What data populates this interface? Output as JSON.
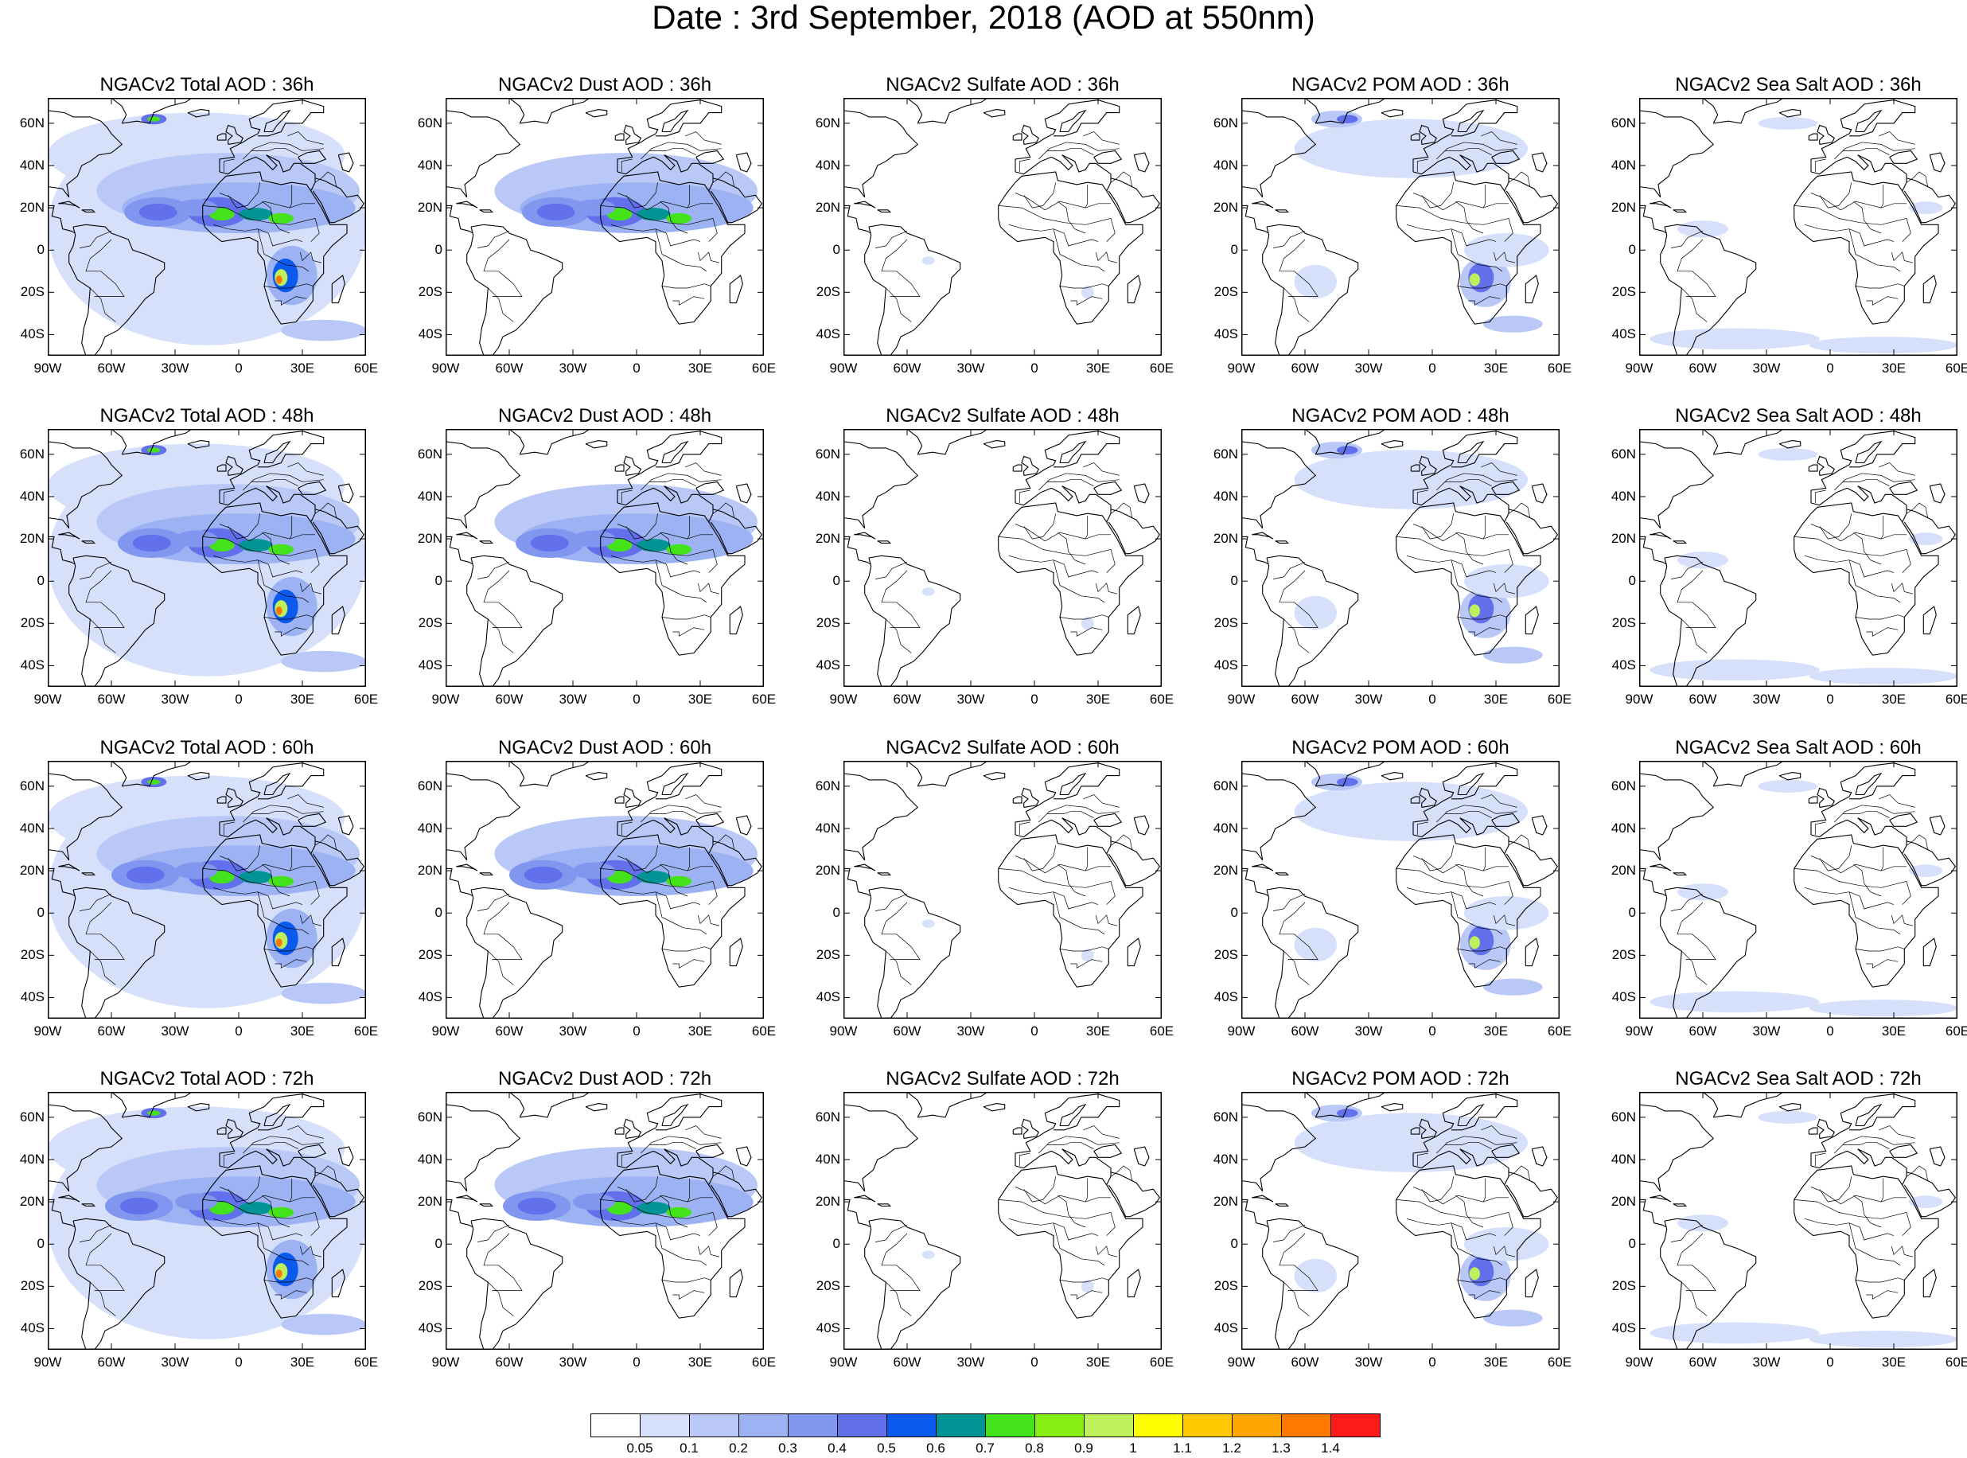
{
  "title": "Date : 3rd September, 2018 (AOD at 550nm)",
  "lat_ticks": [
    "60N",
    "40N",
    "20N",
    "0",
    "20S",
    "40S"
  ],
  "lat_values": [
    60,
    40,
    20,
    0,
    -20,
    -40
  ],
  "lon_ticks": [
    "90W",
    "60W",
    "30W",
    "0",
    "30E",
    "60E"
  ],
  "lon_values": [
    -90,
    -60,
    -30,
    0,
    30,
    60
  ],
  "map_extent": {
    "lon": [
      -90,
      60
    ],
    "lat": [
      -50,
      72
    ]
  },
  "panels": [
    {
      "title": "NGACv2 Total AOD : 36h",
      "species": "total",
      "hour": 36
    },
    {
      "title": "NGACv2 Dust AOD : 36h",
      "species": "dust",
      "hour": 36
    },
    {
      "title": "NGACv2 Sulfate AOD : 36h",
      "species": "sulfate",
      "hour": 36
    },
    {
      "title": "NGACv2 POM AOD : 36h",
      "species": "pom",
      "hour": 36
    },
    {
      "title": "NGACv2 Sea Salt AOD : 36h",
      "species": "seasalt",
      "hour": 36
    },
    {
      "title": "NGACv2 Total AOD : 48h",
      "species": "total",
      "hour": 48
    },
    {
      "title": "NGACv2 Dust AOD : 48h",
      "species": "dust",
      "hour": 48
    },
    {
      "title": "NGACv2 Sulfate AOD : 48h",
      "species": "sulfate",
      "hour": 48
    },
    {
      "title": "NGACv2 POM AOD : 48h",
      "species": "pom",
      "hour": 48
    },
    {
      "title": "NGACv2 Sea Salt AOD : 48h",
      "species": "seasalt",
      "hour": 48
    },
    {
      "title": "NGACv2 Total AOD : 60h",
      "species": "total",
      "hour": 60
    },
    {
      "title": "NGACv2 Dust AOD : 60h",
      "species": "dust",
      "hour": 60
    },
    {
      "title": "NGACv2 Sulfate AOD : 60h",
      "species": "sulfate",
      "hour": 60
    },
    {
      "title": "NGACv2 POM AOD : 60h",
      "species": "pom",
      "hour": 60
    },
    {
      "title": "NGACv2 Sea Salt AOD : 60h",
      "species": "seasalt",
      "hour": 60
    },
    {
      "title": "NGACv2 Total AOD : 72h",
      "species": "total",
      "hour": 72
    },
    {
      "title": "NGACv2 Dust AOD : 72h",
      "species": "dust",
      "hour": 72
    },
    {
      "title": "NGACv2 Sulfate AOD : 72h",
      "species": "sulfate",
      "hour": 72
    },
    {
      "title": "NGACv2 POM AOD : 72h",
      "species": "pom",
      "hour": 72
    },
    {
      "title": "NGACv2 Sea Salt  AOD : 72h",
      "species": "seasalt",
      "hour": 72
    }
  ],
  "colorbar": {
    "labels": [
      "0.05",
      "0.1",
      "0.2",
      "0.3",
      "0.4",
      "0.5",
      "0.6",
      "0.7",
      "0.8",
      "0.9",
      "1",
      "1.1",
      "1.2",
      "1.3",
      "1.4"
    ],
    "colors": [
      "#ffffff",
      "#d6e0fb",
      "#b9c8f7",
      "#9db2f3",
      "#8197ef",
      "#6270ec",
      "#0a5aee",
      "#009494",
      "#44e21a",
      "#86ef12",
      "#bdf05a",
      "#ffff00",
      "#ffc800",
      "#ffa500",
      "#ff7800",
      "#ff1a1a"
    ]
  }
}
